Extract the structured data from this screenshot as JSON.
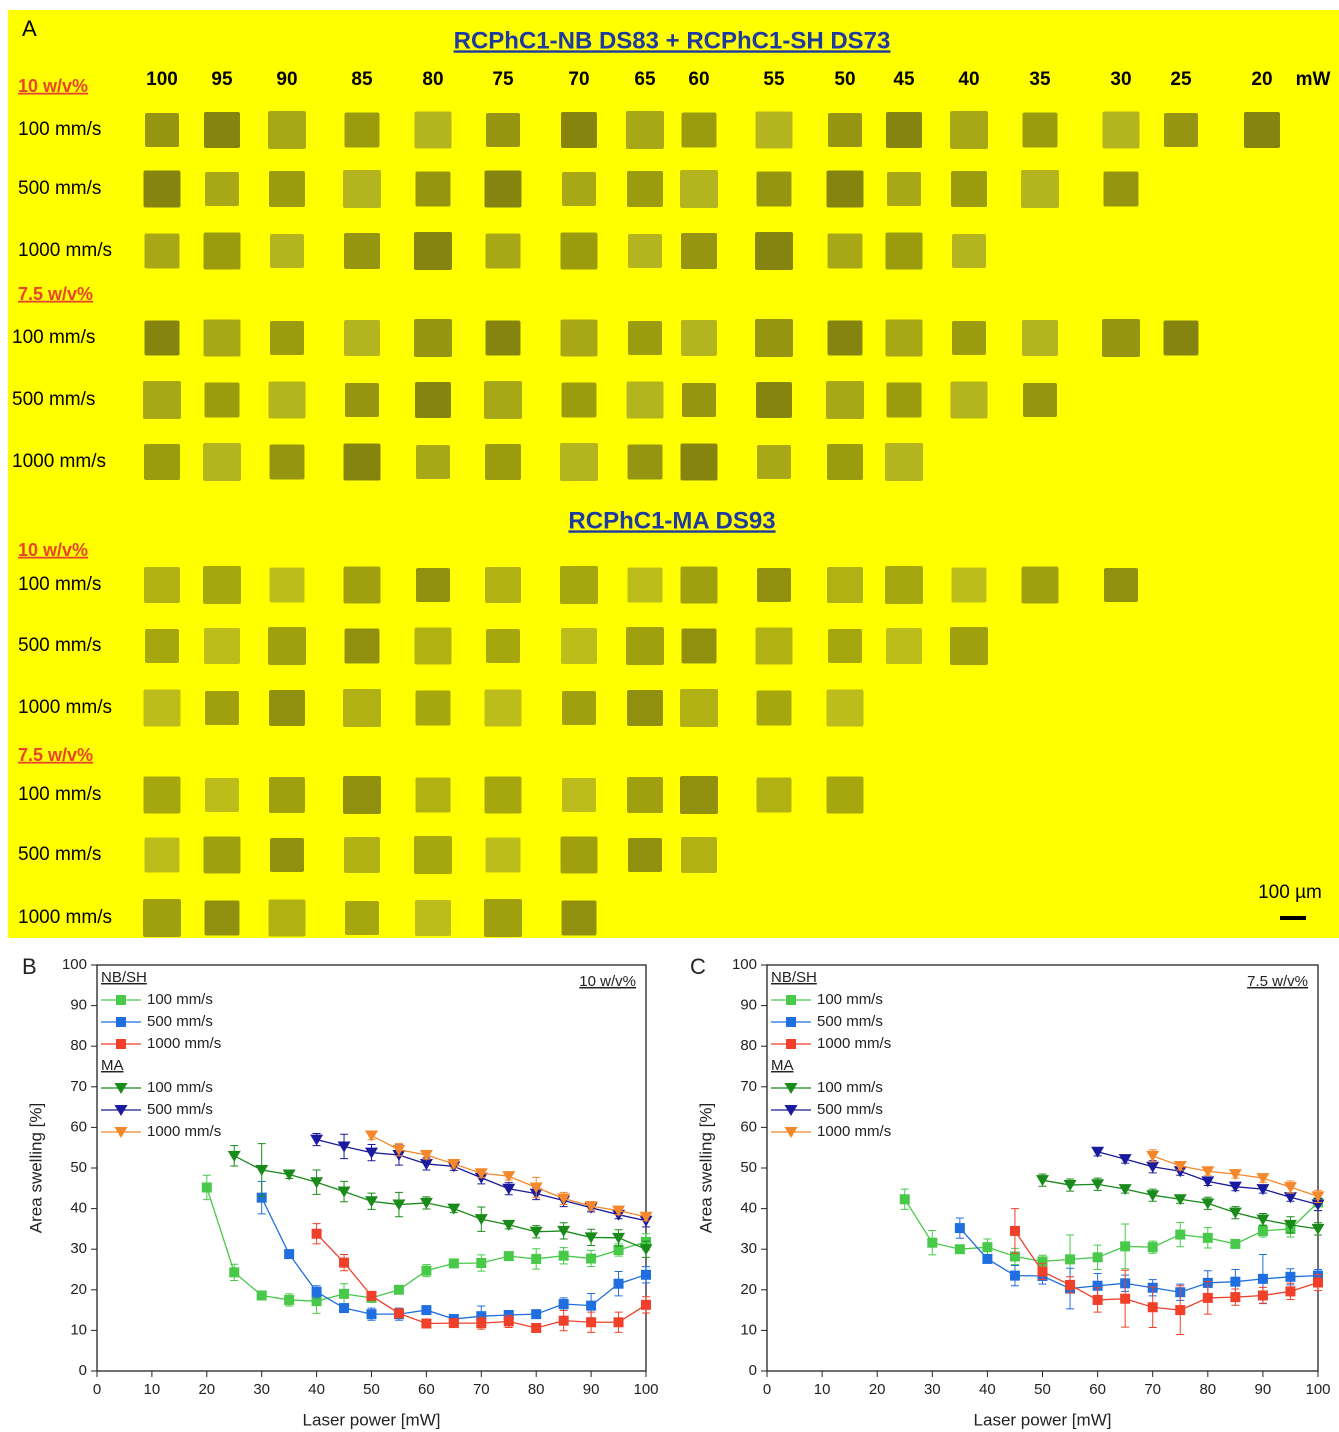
{
  "panel_a": {
    "label": "A",
    "title_1": "RCPhC1-NB DS83 + RCPhC1-SH DS73",
    "title_2": "RCPhC1-MA DS93",
    "powers": [
      100,
      95,
      90,
      85,
      80,
      75,
      70,
      65,
      60,
      55,
      50,
      45,
      40,
      35,
      30,
      25,
      20
    ],
    "power_unit": "mW",
    "scale_bar": "100 µm",
    "sections": [
      {
        "concentration": "10 w/v%",
        "rows": [
          "100 mm/s",
          "500 mm/s",
          "1000 mm/s"
        ]
      },
      {
        "concentration": "7.5 w/v%",
        "rows": [
          "100 mm/s",
          "500 mm/s",
          "1000 mm/s"
        ]
      },
      {
        "concentration": "10 w/v%",
        "rows": [
          "100 mm/s",
          "500 mm/s",
          "1000 mm/s"
        ]
      },
      {
        "concentration": "7.5 w/v%",
        "rows": [
          "100 mm/s",
          "500 mm/s",
          "1000 mm/s"
        ]
      }
    ]
  },
  "chart_data": [
    {
      "type": "line",
      "panel_label": "B",
      "annotation": "10 w/v%",
      "xlabel": "Laser power [mW]",
      "ylabel": "Area swelling [%]",
      "xlim": [
        0,
        100
      ],
      "ylim": [
        0,
        100
      ],
      "xticks": [
        0,
        10,
        20,
        30,
        40,
        50,
        60,
        70,
        80,
        90,
        100
      ],
      "yticks": [
        0,
        10,
        20,
        30,
        40,
        50,
        60,
        70,
        80,
        90,
        100
      ],
      "series": [
        {
          "group": "NB/SH",
          "name": "100 mm/s",
          "color": "#49c94a",
          "marker": "square",
          "x": [
            20,
            25,
            30,
            35,
            40,
            45,
            50,
            55,
            60,
            65,
            70,
            75,
            80,
            85,
            90,
            95,
            100
          ],
          "values": [
            45.2,
            24.3,
            18.6,
            17.5,
            17.2,
            19,
            18,
            20,
            24.7,
            26.5,
            26.6,
            28.3,
            27.6,
            28.4,
            27.7,
            29.8,
            31.8
          ],
          "errors": [
            3,
            2,
            1,
            1.5,
            3,
            2.5,
            1,
            1,
            1.5,
            1,
            2,
            1,
            2.5,
            2,
            2,
            1.5,
            2
          ]
        },
        {
          "group": "NB/SH",
          "name": "500 mm/s",
          "color": "#1f6fe0",
          "marker": "square",
          "x": [
            30,
            35,
            40,
            45,
            50,
            55,
            60,
            65,
            70,
            75,
            80,
            85,
            90,
            95,
            100
          ],
          "values": [
            42.7,
            28.8,
            19.5,
            15.5,
            14,
            14,
            15,
            12.8,
            13.5,
            13.8,
            14,
            16.5,
            16.1,
            21.5,
            23.7
          ],
          "errors": [
            4,
            1,
            1.5,
            1,
            1.5,
            1.5,
            1,
            1,
            2.5,
            1,
            1,
            1.5,
            3,
            3,
            2
          ]
        },
        {
          "group": "NB/SH",
          "name": "1000 mm/s",
          "color": "#f0402a",
          "marker": "square",
          "x": [
            40,
            45,
            50,
            55,
            60,
            65,
            70,
            75,
            80,
            85,
            90,
            95,
            100
          ],
          "values": [
            33.8,
            26.7,
            18.5,
            14.2,
            11.7,
            11.8,
            11.8,
            12.2,
            10.6,
            12.4,
            12,
            12,
            16.3
          ],
          "errors": [
            2.5,
            2,
            1,
            1,
            1,
            1,
            1.5,
            1.5,
            1,
            2.5,
            2.5,
            2.5,
            2
          ]
        },
        {
          "group": "MA",
          "name": "100 mm/s",
          "color": "#1a8a1a",
          "marker": "triangle-down",
          "x": [
            25,
            30,
            35,
            40,
            45,
            50,
            55,
            60,
            65,
            70,
            75,
            80,
            85,
            90,
            95,
            100
          ],
          "values": [
            53,
            49.5,
            48.4,
            46.5,
            44.2,
            41.8,
            41,
            41.4,
            40,
            37.4,
            36,
            34.3,
            34.5,
            32.9,
            32.8,
            30
          ],
          "errors": [
            2.5,
            6.5,
            1,
            3,
            2.5,
            2,
            3,
            1.5,
            1,
            3,
            1,
            1.5,
            2,
            2,
            2,
            2
          ]
        },
        {
          "group": "MA",
          "name": "500 mm/s",
          "color": "#1a1a9e",
          "marker": "triangle-down",
          "x": [
            40,
            45,
            50,
            55,
            60,
            65,
            70,
            75,
            80,
            85,
            90,
            95,
            100
          ],
          "values": [
            57,
            55.3,
            53.8,
            53.2,
            51,
            50.4,
            47.6,
            44.9,
            43.7,
            42,
            40.2,
            38.5,
            37
          ],
          "errors": [
            1.5,
            3,
            2,
            2.5,
            1.5,
            1,
            1.5,
            1.5,
            1.5,
            1.5,
            1,
            1,
            1.5
          ]
        },
        {
          "group": "MA",
          "name": "1000 mm/s",
          "color": "#f5882a",
          "marker": "triangle-down",
          "x": [
            50,
            55,
            60,
            65,
            70,
            75,
            80,
            85,
            90,
            95,
            100
          ],
          "values": [
            58,
            54.5,
            53.2,
            51,
            48.7,
            48,
            45.2,
            42.5,
            40.6,
            39.5,
            38
          ],
          "errors": [
            1,
            1.5,
            1,
            1,
            1,
            1,
            2.5,
            1.5,
            1,
            1,
            1
          ]
        }
      ]
    },
    {
      "type": "line",
      "panel_label": "C",
      "annotation": "7.5 w/v%",
      "xlabel": "Laser power [mW]",
      "ylabel": "Area swelling [%]",
      "xlim": [
        0,
        100
      ],
      "ylim": [
        0,
        100
      ],
      "xticks": [
        0,
        10,
        20,
        30,
        40,
        50,
        60,
        70,
        80,
        90,
        100
      ],
      "yticks": [
        0,
        10,
        20,
        30,
        40,
        50,
        60,
        70,
        80,
        90,
        100
      ],
      "series": [
        {
          "group": "NB/SH",
          "name": "100 mm/s",
          "color": "#49c94a",
          "marker": "square",
          "x": [
            25,
            30,
            35,
            40,
            45,
            50,
            55,
            60,
            65,
            70,
            75,
            80,
            85,
            90,
            95,
            100
          ],
          "values": [
            42.3,
            31.6,
            30,
            30.5,
            28.2,
            27,
            27.5,
            28,
            30.7,
            30.5,
            33.6,
            32.8,
            31.3,
            34.5,
            35,
            41.5
          ],
          "errors": [
            2.5,
            3,
            1,
            2,
            2,
            1.5,
            6,
            3,
            5.5,
            1.5,
            3,
            2.5,
            1,
            1.5,
            2,
            2
          ]
        },
        {
          "group": "NB/SH",
          "name": "500 mm/s",
          "color": "#1f6fe0",
          "marker": "square",
          "x": [
            35,
            40,
            45,
            50,
            55,
            60,
            65,
            70,
            75,
            80,
            85,
            90,
            95,
            100
          ],
          "values": [
            35.2,
            27.6,
            23.5,
            23.4,
            20.3,
            21,
            21.6,
            20.5,
            19.4,
            21.7,
            22,
            22.7,
            23.2,
            23.5
          ],
          "errors": [
            2.5,
            1,
            2.5,
            2,
            5,
            3,
            2,
            2,
            2,
            3,
            3,
            6,
            2,
            1.5
          ]
        },
        {
          "group": "NB/SH",
          "name": "1000 mm/s",
          "color": "#f0402a",
          "marker": "square",
          "x": [
            45,
            50,
            55,
            60,
            65,
            70,
            75,
            80,
            85,
            90,
            95,
            100
          ],
          "values": [
            34.5,
            24.5,
            21.2,
            17.5,
            17.8,
            15.7,
            15,
            18,
            18.2,
            18.6,
            19.6,
            21.8
          ],
          "errors": [
            5.5,
            2,
            2,
            3,
            7,
            5,
            6,
            4,
            2,
            2,
            2,
            2
          ]
        },
        {
          "group": "MA",
          "name": "100 mm/s",
          "color": "#1a8a1a",
          "marker": "triangle-down",
          "x": [
            50,
            55,
            60,
            65,
            70,
            75,
            80,
            85,
            90,
            95,
            100
          ],
          "values": [
            47,
            45.8,
            46,
            44.8,
            43.3,
            42.3,
            41.3,
            39,
            37.3,
            36,
            35
          ],
          "errors": [
            1.5,
            1.5,
            1.5,
            1,
            1.5,
            1,
            1.5,
            1.5,
            1.5,
            2,
            1.5
          ]
        },
        {
          "group": "MA",
          "name": "500 mm/s",
          "color": "#1a1a9e",
          "marker": "triangle-down",
          "x": [
            60,
            65,
            70,
            75,
            80,
            85,
            90,
            95,
            100
          ],
          "values": [
            54,
            52.2,
            50.3,
            49.2,
            46.7,
            45.4,
            44.8,
            42.8,
            41
          ],
          "errors": [
            1,
            1,
            1.5,
            1,
            1,
            1,
            1,
            1,
            1.5
          ]
        },
        {
          "group": "MA",
          "name": "1000 mm/s",
          "color": "#f5882a",
          "marker": "triangle-down",
          "x": [
            70,
            75,
            80,
            85,
            90,
            95,
            100
          ],
          "values": [
            53,
            50.5,
            49.2,
            48.5,
            47.5,
            45.3,
            43
          ],
          "errors": [
            1.5,
            1,
            1,
            1,
            1,
            1.5,
            1.5
          ]
        }
      ]
    }
  ]
}
